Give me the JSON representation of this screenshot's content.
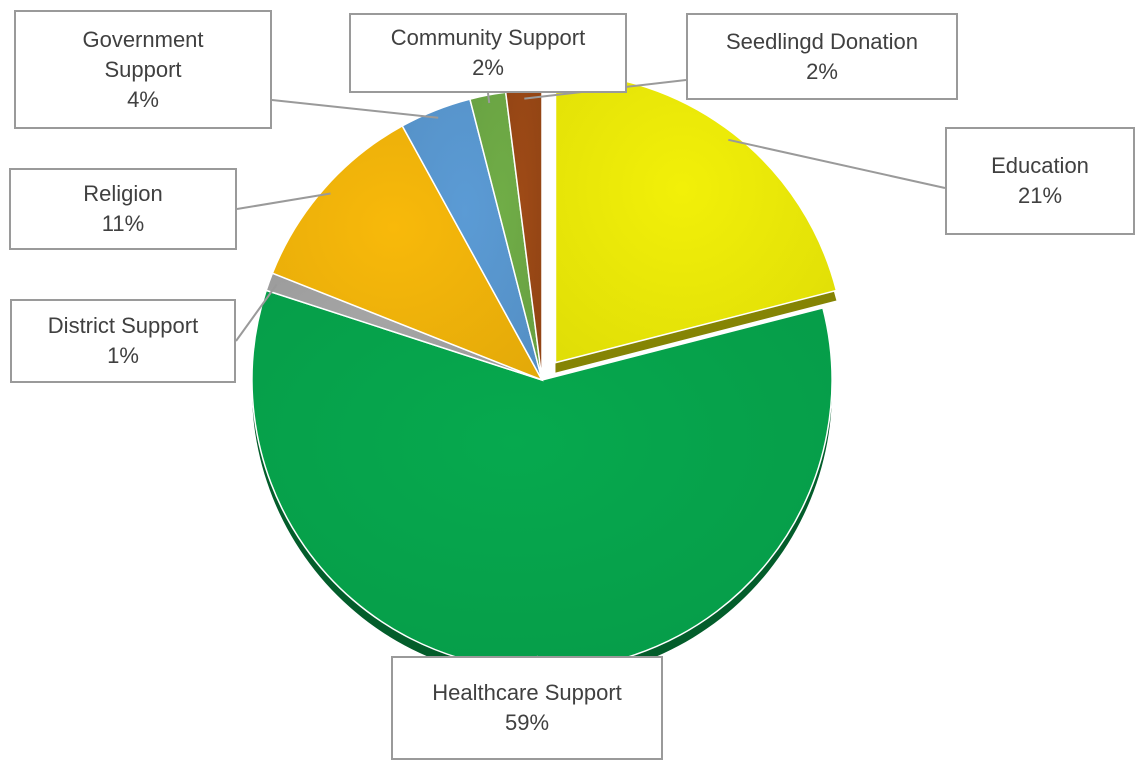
{
  "chart_data": {
    "type": "pie",
    "title": "",
    "style": "3d exploded",
    "legend": "none",
    "data_labels": "category name and percentage in callouts",
    "slices": [
      {
        "label": "Education",
        "value": 21,
        "percent_label": "21%",
        "color": "#f2f008"
      },
      {
        "label": "Healthcare Support",
        "value": 59,
        "percent_label": "59%",
        "color": "#06a94e"
      },
      {
        "label": "District Support",
        "value": 1,
        "percent_label": "1%",
        "color": "#a6a6a6"
      },
      {
        "label": "Religion",
        "value": 11,
        "percent_label": "11%",
        "color": "#f8b90a"
      },
      {
        "label": "Government",
        "label_line2": "Support",
        "value": 4,
        "percent_label": "4%",
        "color": "#5b9bd5"
      },
      {
        "label": "Community Support",
        "value": 2,
        "percent_label": "2%",
        "color": "#70ad47"
      },
      {
        "label": "Seedlingd Donation",
        "value": 2,
        "percent_label": "2%",
        "color": "#9e4a16"
      }
    ]
  }
}
